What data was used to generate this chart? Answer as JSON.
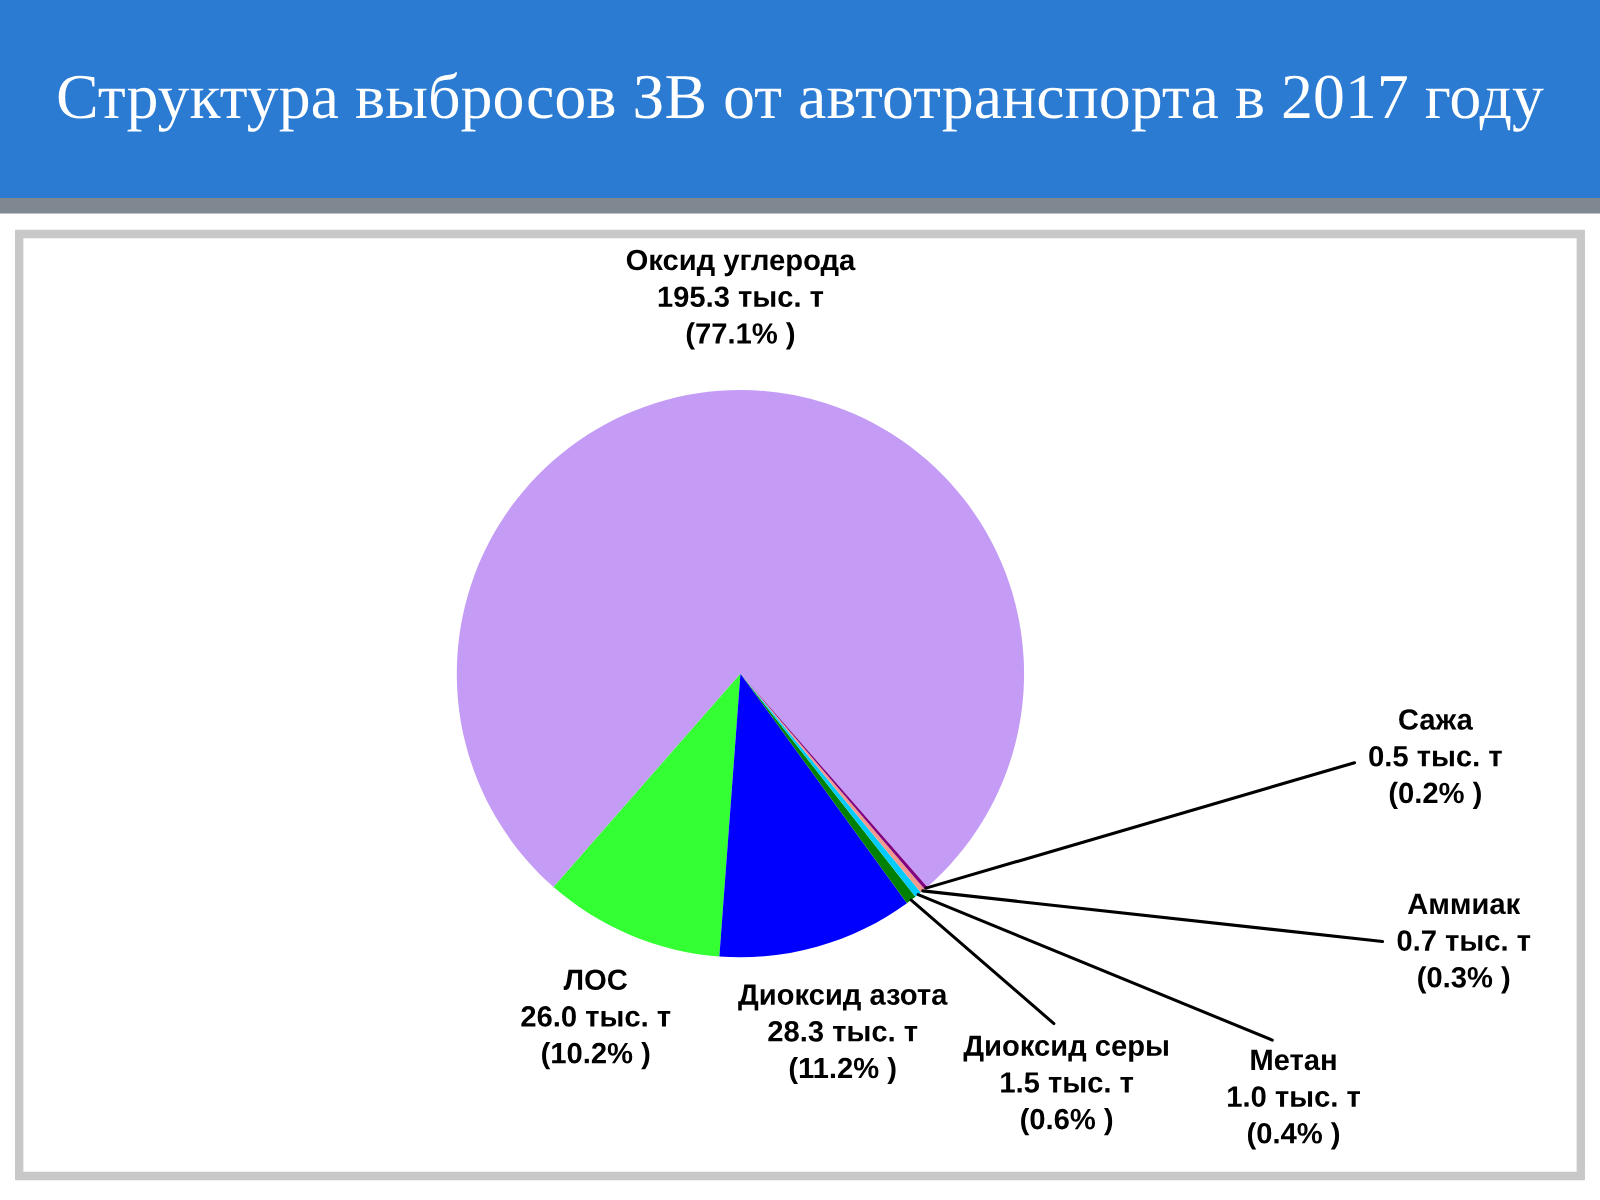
{
  "chart_data": {
    "type": "pie",
    "title": "Структура выбросов ЗВ от автотранспорта в 2017 году",
    "categories": [
      "Оксид углерода",
      "ЛОС",
      "Диоксид азота",
      "Диоксид серы",
      "Метан",
      "Аммиак",
      "Сажа"
    ],
    "values": [
      195.3,
      26.0,
      28.3,
      1.5,
      1.0,
      0.7,
      0.5
    ],
    "colors": [
      "#c49cf6",
      "#33ff33",
      "#0000ff",
      "#008000",
      "#00ccff",
      "#f39a8e",
      "#800080"
    ],
    "value_labels": [
      "195.3 тыс. т\n(77.1% )",
      "26.0 тыс. т\n(10.2% )",
      "28.3 тыс. т\n(11.2% )",
      "1.5 тыс. т\n(0.6% )",
      "1.0 тыс. т\n(0.4% )",
      "0.7 тыс. т\n(0.3% )",
      "0.5 тыс. т\n(0.2% )"
    ]
  }
}
